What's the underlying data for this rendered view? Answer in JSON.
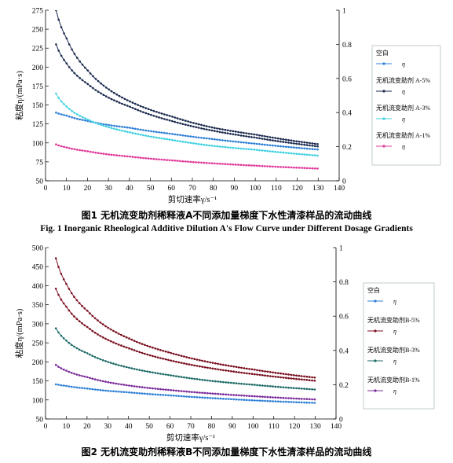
{
  "figures": [
    {
      "caption_cn": "图1   无机流变助剂稀释液A不同添加量梯度下水性清漆样品的流动曲线",
      "caption_en": "Fig. 1   Inorganic Rheological Additive Dilution A's Flow Curve under Different Dosage Gradients",
      "chart_data": {
        "type": "line",
        "xlabel": "剪切速率γ/s⁻¹",
        "ylabel": "粘度η/(mPa·s)",
        "xlim": [
          0,
          140
        ],
        "ylim": [
          50,
          275
        ],
        "y2lim": [
          0,
          1
        ],
        "xticks": [
          0,
          10,
          20,
          30,
          40,
          50,
          60,
          70,
          80,
          90,
          100,
          110,
          120,
          130,
          140
        ],
        "yticks": [
          50,
          75,
          100,
          125,
          150,
          175,
          200,
          225,
          250,
          275
        ],
        "y2ticks": [
          0,
          0.2,
          0.4,
          0.6,
          0.8,
          1
        ],
        "x": [
          5,
          10,
          20,
          40,
          60,
          80,
          100,
          131
        ],
        "series": [
          {
            "name": "空白",
            "legend_symbol": "η",
            "color": "#2d7fd6",
            "values": [
              140,
              136,
              129,
              120,
              112,
              105,
              99,
              91
            ]
          },
          {
            "name": "无机流变助剂 A-5%",
            "legend_symbol": "η",
            "color": "#1b2a4e",
            "values": [
              275,
              238,
              196,
              155,
              135,
              120,
              111,
              98
            ]
          },
          {
            "name": "无机流变助剂 A-3%",
            "legend_symbol": "η",
            "color": "#3fd0e0",
            "values": [
              165,
              148,
              131,
              114,
              104,
              96,
              91,
              83
            ]
          },
          {
            "name": "无机流变助剂 A-1%",
            "legend_symbol": "η",
            "color": "#e0389a",
            "values": [
              98,
              94,
              89,
              82,
              77,
              73,
              70,
              66
            ]
          }
        ],
        "extra_series": {
          "x": [
            5,
            10,
            20,
            40,
            60,
            80,
            100,
            131
          ],
          "color": "#1b2a4e",
          "values": [
            230,
            205,
            178,
            148,
            129,
            116,
            107,
            95
          ]
        }
      }
    },
    {
      "caption_cn": "图2   无机流变助剂稀释液B不同添加量梯度下水性清漆样品的流动曲线",
      "caption_en": "",
      "chart_data": {
        "type": "line",
        "xlabel": "剪切速率γ/s⁻¹",
        "ylabel": "粘度η/(mPa·s)",
        "xlim": [
          0,
          140
        ],
        "ylim": [
          50,
          500
        ],
        "y2lim": [
          0,
          1
        ],
        "xticks": [
          0,
          10,
          20,
          30,
          40,
          50,
          60,
          70,
          80,
          90,
          100,
          110,
          120,
          130,
          140
        ],
        "yticks": [
          50,
          100,
          150,
          200,
          250,
          300,
          350,
          400,
          450,
          500
        ],
        "y2ticks": [
          0,
          0.2,
          0.4,
          0.6,
          0.8,
          1
        ],
        "x": [
          5,
          10,
          20,
          40,
          60,
          80,
          100,
          131
        ],
        "series": [
          {
            "name": "空白",
            "legend_symbol": "η",
            "color": "#2d7fd6",
            "values": [
              141,
              137,
              130,
              120,
              112,
              105,
              99,
              92
            ]
          },
          {
            "name": "无机流变助剂B-5%",
            "legend_symbol": "η",
            "color": "#7a1020",
            "values": [
              472,
              405,
              335,
              262,
              224,
              198,
              180,
              158
            ]
          },
          {
            "name": "无机流变助剂B-3%",
            "legend_symbol": "η",
            "color": "#1d6b66",
            "values": [
              288,
              256,
              223,
              185,
              165,
              150,
              140,
              127
            ]
          },
          {
            "name": "无机流变助剂B-1%",
            "legend_symbol": "η",
            "color": "#7a2a9a",
            "values": [
              192,
              177,
              160,
              138,
              126,
              117,
              110,
              101
            ]
          }
        ],
        "extra_series": {
          "x": [
            5,
            10,
            20,
            40,
            60,
            80,
            100,
            131
          ],
          "color": "#7a1020",
          "values": [
            392,
            345,
            292,
            236,
            204,
            183,
            168,
            150
          ]
        }
      }
    }
  ]
}
